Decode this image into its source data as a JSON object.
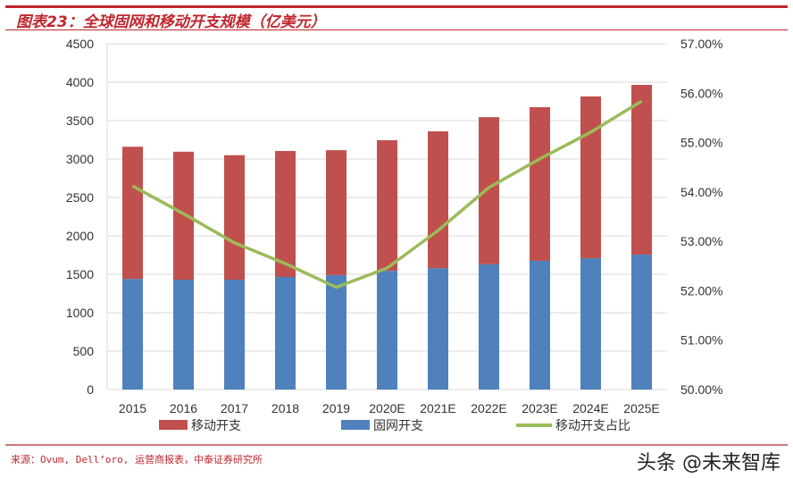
{
  "header": {
    "title": "图表23：全球固网和移动开支规模（亿美元）"
  },
  "footer": {
    "source": "来源：Ovum, Dell’oro, 运营商报表，中泰证券研究所",
    "watermark": "头条 @未来智库"
  },
  "chart_data": {
    "type": "bar+line",
    "title": "图表23：全球固网和移动开支规模（亿美元）",
    "categories": [
      "2015",
      "2016",
      "2017",
      "2018",
      "2019",
      "2020E",
      "2021E",
      "2022E",
      "2023E",
      "2024E",
      "2025E"
    ],
    "series": [
      {
        "name": "固网开支",
        "type": "stacked-bar",
        "axis": "left",
        "color": "#4f81bd",
        "values": [
          1440,
          1430,
          1430,
          1465,
          1490,
          1545,
          1580,
          1630,
          1675,
          1710,
          1755
        ]
      },
      {
        "name": "移动开支",
        "type": "stacked-bar",
        "axis": "left",
        "color": "#c0504d",
        "values": [
          1720,
          1665,
          1620,
          1640,
          1625,
          1700,
          1780,
          1915,
          2000,
          2105,
          2210
        ]
      },
      {
        "name": "移动开支占比",
        "type": "line",
        "axis": "right",
        "color": "#9bbb59",
        "values": [
          54.12,
          53.56,
          52.97,
          52.55,
          52.07,
          52.46,
          53.22,
          54.09,
          54.67,
          55.21,
          55.84
        ]
      }
    ],
    "legend_order": [
      "移动开支",
      "固网开支",
      "移动开支占比"
    ],
    "ylim": [
      0,
      4500
    ],
    "yticks": [
      "0",
      "500",
      "1000",
      "1500",
      "2000",
      "2500",
      "3000",
      "3500",
      "4000",
      "4500"
    ],
    "y2lim": [
      50,
      57
    ],
    "y2ticks": [
      "50.00%",
      "51.00%",
      "52.00%",
      "53.00%",
      "54.00%",
      "55.00%",
      "56.00%",
      "57.00%"
    ],
    "grid": true,
    "legend_placement": "bottom"
  }
}
